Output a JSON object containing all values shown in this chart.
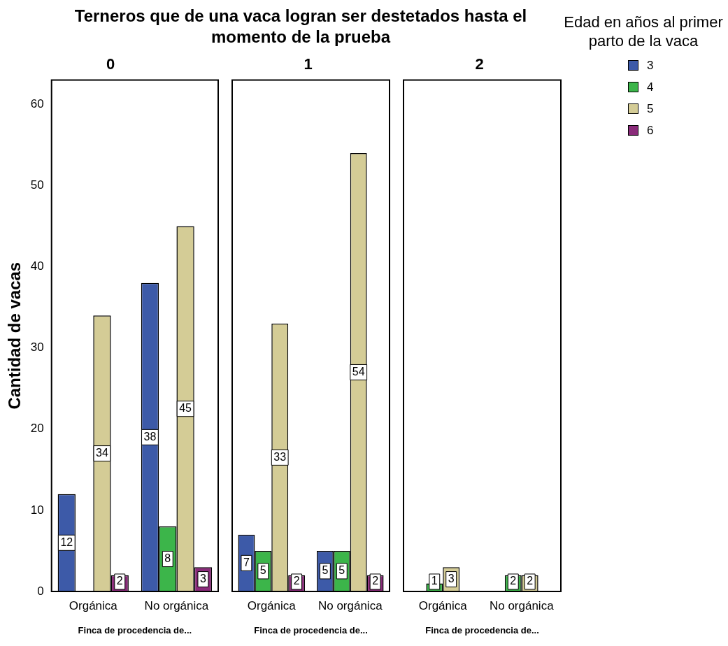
{
  "chart_data": [
    {
      "type": "bar",
      "title": "Terneros que de una vaca logran ser destetados hasta el momento de la prueba",
      "subtitle": "0",
      "xlabel": "Finca de procedencia de...",
      "ylabel": "Cantidad de vacas",
      "categories": [
        "Orgánica",
        "No orgánica"
      ],
      "series": [
        {
          "name": "3",
          "color": "#3d5aa8",
          "values": [
            12,
            38
          ]
        },
        {
          "name": "4",
          "color": "#3cb54a",
          "values": [
            null,
            8
          ]
        },
        {
          "name": "5",
          "color": "#d4cc96",
          "values": [
            34,
            45
          ]
        },
        {
          "name": "6",
          "color": "#8a2b7a",
          "values": [
            2,
            3
          ]
        }
      ],
      "ylim": [
        0,
        63
      ],
      "yticks": [
        0,
        10,
        20,
        30,
        40,
        50,
        60
      ],
      "data_labels": true,
      "legend": "right",
      "legend_title": "Edad en años al primer parto de la vaca"
    },
    {
      "type": "bar",
      "subtitle": "1",
      "xlabel": "Finca de procedencia de...",
      "categories": [
        "Orgánica",
        "No orgánica"
      ],
      "series": [
        {
          "name": "3",
          "color": "#3d5aa8",
          "values": [
            7,
            5
          ]
        },
        {
          "name": "4",
          "color": "#3cb54a",
          "values": [
            5,
            5
          ]
        },
        {
          "name": "5",
          "color": "#d4cc96",
          "values": [
            33,
            54
          ]
        },
        {
          "name": "6",
          "color": "#8a2b7a",
          "values": [
            2,
            2
          ]
        }
      ],
      "ylim": [
        0,
        63
      ],
      "tick_labels": "x",
      "data_labels": true
    },
    {
      "type": "bar",
      "subtitle": "2",
      "xlabel": "Finca de procedencia de...",
      "categories": [
        "Orgánica",
        "No orgánica"
      ],
      "series": [
        {
          "name": "3",
          "color": "#3d5aa8",
          "values": [
            null,
            null
          ]
        },
        {
          "name": "4",
          "color": "#3cb54a",
          "values": [
            1,
            2
          ]
        },
        {
          "name": "5",
          "color": "#d4cc96",
          "values": [
            3,
            2
          ]
        },
        {
          "name": "6",
          "color": "#8a2b7a",
          "values": [
            null,
            null
          ]
        }
      ],
      "ylim": [
        0,
        63
      ],
      "tick_labels": "x",
      "data_labels": true
    }
  ]
}
